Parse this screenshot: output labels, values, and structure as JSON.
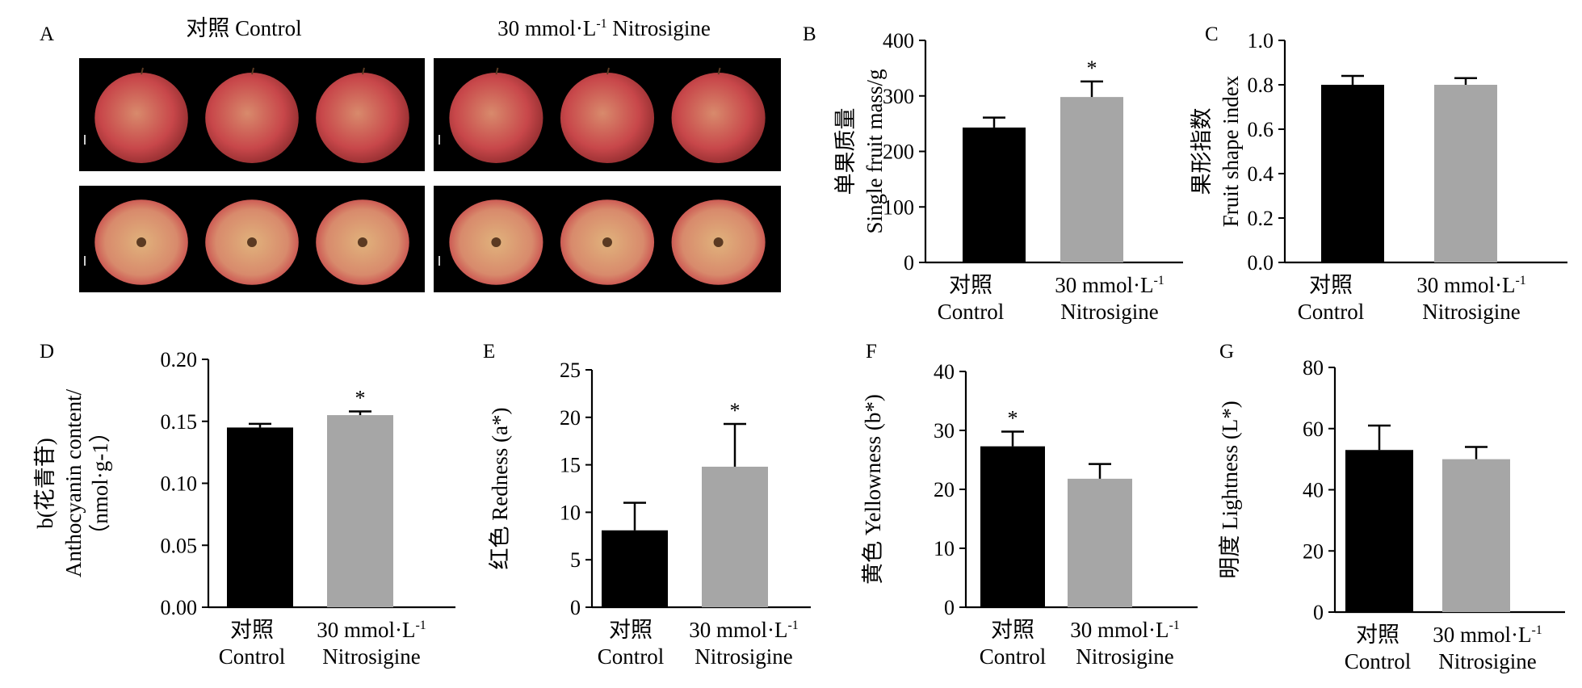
{
  "colors": {
    "control": "#000000",
    "treatment": "#a6a6a6",
    "photo_bg": "#000000",
    "apple_base": "#e0b27c",
    "apple_red": "#c8474a",
    "apple_mid": "#d88a6c"
  },
  "panel_a": {
    "letter": "A",
    "control_label": "对照 Control",
    "treatment_label_pre": "30 mmol·L",
    "treatment_label_sup": "-1",
    "treatment_label_post": " Nitrosigine"
  },
  "x_labels": {
    "control_cn": "对照",
    "control_en": "Control",
    "treat_line1_pre": "30 mmol·L",
    "treat_line1_sup": "-1",
    "treat_line2": "Nitrosigine"
  },
  "chart_data": [
    {
      "panel": "B",
      "type": "bar",
      "categories": [
        "Control",
        "30 mmol·L-1 Nitrosigine"
      ],
      "values": [
        243,
        298
      ],
      "errors": [
        18,
        28
      ],
      "significance": [
        "",
        "*"
      ],
      "ylim": [
        0,
        400
      ],
      "yticks": [
        "0",
        "100",
        "200",
        "300",
        "400"
      ],
      "ylabel_lines": [
        "单果质量",
        "Single fruit mass/g"
      ]
    },
    {
      "panel": "C",
      "type": "bar",
      "categories": [
        "Control",
        "30 mmol·L-1 Nitrosigine"
      ],
      "values": [
        0.8,
        0.8
      ],
      "errors": [
        0.04,
        0.03
      ],
      "significance": [
        "",
        ""
      ],
      "ylim": [
        0,
        1.0
      ],
      "yticks": [
        "0.0",
        "0.2",
        "0.4",
        "0.6",
        "0.8",
        "1.0"
      ],
      "ylabel_lines": [
        "果形指数",
        "Fruit shape index"
      ]
    },
    {
      "panel": "D",
      "type": "bar",
      "categories": [
        "Control",
        "30 mmol·L-1 Nitrosigine"
      ],
      "values": [
        0.145,
        0.155
      ],
      "errors": [
        0.003,
        0.003
      ],
      "significance": [
        "",
        "*"
      ],
      "ylim": [
        0,
        0.2
      ],
      "yticks": [
        "0.00",
        "0.05",
        "0.10",
        "0.15",
        "0.20"
      ],
      "ylabel_lines": [
        "b(花青苷)",
        "Anthocyanin content/",
        "（nmol·g-1）"
      ]
    },
    {
      "panel": "E",
      "type": "bar",
      "categories": [
        "Control",
        "30 mmol·L-1 Nitrosigine"
      ],
      "values": [
        8.1,
        14.8
      ],
      "errors": [
        2.9,
        4.5
      ],
      "significance": [
        "",
        "*"
      ],
      "ylim": [
        0,
        25
      ],
      "yticks": [
        "0",
        "5",
        "10",
        "15",
        "20",
        "25"
      ],
      "ylabel_lines": [
        "红色 Redness (a*)"
      ]
    },
    {
      "panel": "F",
      "type": "bar",
      "categories": [
        "Control",
        "30 mmol·L-1 Nitrosigine"
      ],
      "values": [
        27.3,
        21.8
      ],
      "errors": [
        2.5,
        2.5
      ],
      "significance": [
        "*",
        ""
      ],
      "ylim": [
        0,
        40
      ],
      "yticks": [
        "0",
        "10",
        "20",
        "30",
        "40"
      ],
      "ylabel_lines": [
        "黄色 Yellowness (b*)"
      ]
    },
    {
      "panel": "G",
      "type": "bar",
      "categories": [
        "Control",
        "30 mmol·L-1 Nitrosigine"
      ],
      "values": [
        53,
        50
      ],
      "errors": [
        8,
        4
      ],
      "significance": [
        "",
        ""
      ],
      "ylim": [
        0,
        80
      ],
      "yticks": [
        "0",
        "20",
        "40",
        "60",
        "80"
      ],
      "ylabel_lines": [
        "明度 Lightness (L*)"
      ]
    }
  ]
}
